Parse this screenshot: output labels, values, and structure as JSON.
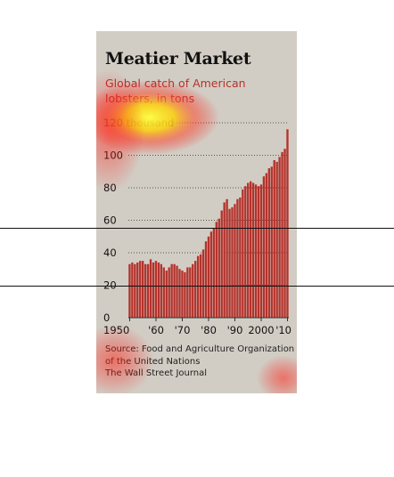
{
  "chart_data": {
    "type": "bar",
    "title": "Meatier Market",
    "subtitle": "Global catch of American lobsters, in tons",
    "y_tick_labels": [
      "120 thousand",
      "100",
      "80",
      "60",
      "40",
      "20",
      "0"
    ],
    "y_ticks": [
      120,
      100,
      80,
      60,
      40,
      20,
      0
    ],
    "x_tick_labels": [
      "1950",
      "'60",
      "'70",
      "'80",
      "'90",
      "2000",
      "'10"
    ],
    "ylim": [
      0,
      120
    ],
    "grid": true,
    "bar_color": "#b5322c",
    "x": [
      1950,
      1951,
      1952,
      1953,
      1954,
      1955,
      1956,
      1957,
      1958,
      1959,
      1960,
      1961,
      1962,
      1963,
      1964,
      1965,
      1966,
      1967,
      1968,
      1969,
      1970,
      1971,
      1972,
      1973,
      1974,
      1975,
      1976,
      1977,
      1978,
      1979,
      1980,
      1981,
      1982,
      1983,
      1984,
      1985,
      1986,
      1987,
      1988,
      1989,
      1990,
      1991,
      1992,
      1993,
      1994,
      1995,
      1996,
      1997,
      1998,
      1999,
      2000,
      2001,
      2002,
      2003,
      2004,
      2005,
      2006,
      2007,
      2008,
      2009,
      2010
    ],
    "values": [
      33,
      34,
      33,
      34,
      35,
      35,
      33,
      33,
      36,
      34,
      35,
      34,
      33,
      31,
      29,
      31,
      33,
      33,
      32,
      30,
      29,
      28,
      31,
      31,
      33,
      35,
      38,
      39,
      42,
      47,
      50,
      53,
      55,
      59,
      61,
      66,
      71,
      73,
      67,
      68,
      70,
      73,
      74,
      79,
      81,
      83,
      84,
      83,
      82,
      81,
      82,
      87,
      89,
      92,
      93,
      97,
      96,
      99,
      102,
      104,
      116
    ]
  },
  "source": {
    "line1": "Source: Food and Agriculture Organization",
    "line2": "of the United Nations",
    "line3": "The Wall Street Journal"
  }
}
